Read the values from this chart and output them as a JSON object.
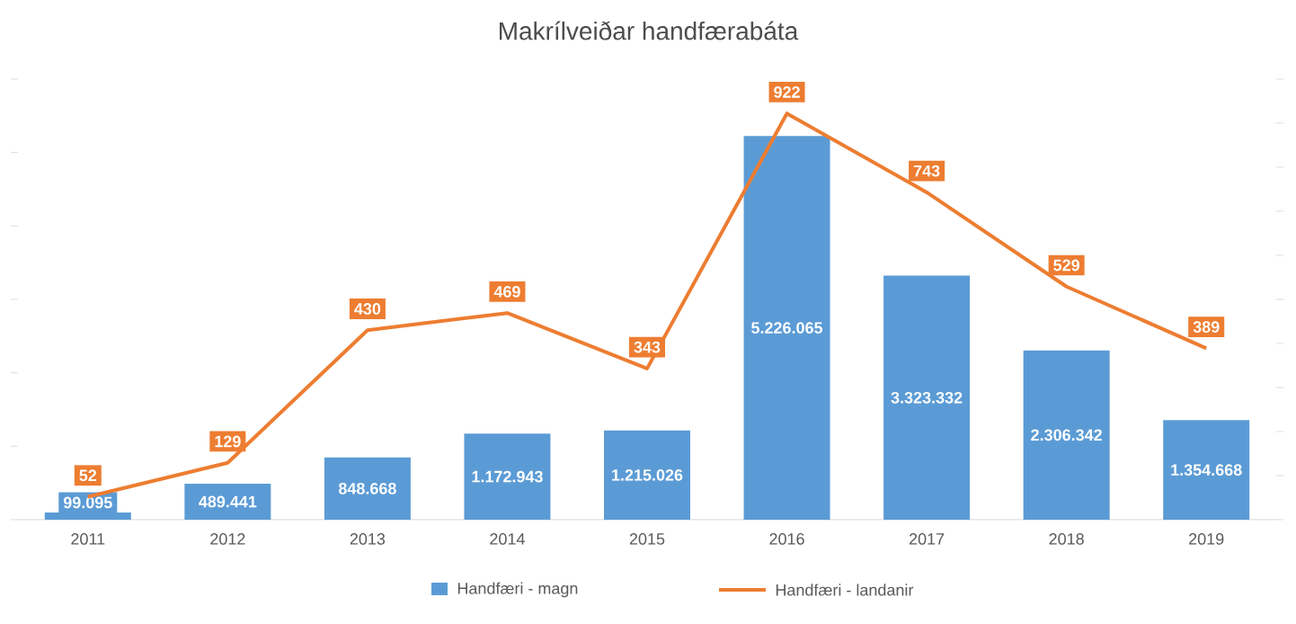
{
  "chart_data": {
    "type": "bar",
    "title": "Makrílveiðar handfærabáta",
    "categories": [
      "2011",
      "2012",
      "2013",
      "2014",
      "2015",
      "2016",
      "2017",
      "2018",
      "2019"
    ],
    "series": [
      {
        "name": "Handfæri - magn",
        "color": "#5b9bd5",
        "values": [
          99095,
          489441,
          848668,
          1172943,
          1215026,
          5226065,
          3323332,
          2306342,
          1354668
        ],
        "value_labels": [
          "99.095",
          "489.441",
          "848.668",
          "1.172.943",
          "1.215.026",
          "5.226.065",
          "3.323.332",
          "2.306.342",
          "1.354.668"
        ]
      },
      {
        "name": "Handfæri - landanir",
        "type": "line",
        "axis": "y2",
        "color": "#ed7d31",
        "values": [
          52,
          129,
          430,
          469,
          343,
          922,
          743,
          529,
          389
        ],
        "value_labels": [
          "52",
          "129",
          "430",
          "469",
          "343",
          "922",
          "743",
          "529",
          "389"
        ]
      }
    ],
    "ylim": [
      0,
      6000000
    ],
    "yticks": [
      {
        "value": 0,
        "label": null
      },
      {
        "value": 1000000,
        "label": null
      },
      {
        "value": 2000000,
        "label": null
      },
      {
        "value": 3000000,
        "label": null
      },
      {
        "value": 4000000,
        "label": null
      },
      {
        "value": 5000000,
        "label": null
      },
      {
        "value": 6000000,
        "label": null
      }
    ],
    "y2lim": [
      0,
      1000
    ],
    "y2ticks": [
      {
        "value": 0,
        "label": null
      },
      {
        "value": 100,
        "label": null
      },
      {
        "value": 200,
        "label": null
      },
      {
        "value": 300,
        "label": null
      },
      {
        "value": 400,
        "label": null
      },
      {
        "value": 500,
        "label": null
      },
      {
        "value": 600,
        "label": null
      },
      {
        "value": 700,
        "label": null
      },
      {
        "value": 800,
        "label": null
      },
      {
        "value": 900,
        "label": null
      },
      {
        "value": 1000,
        "label": null
      }
    ],
    "tick_labels": "x",
    "legend": "bottom"
  }
}
